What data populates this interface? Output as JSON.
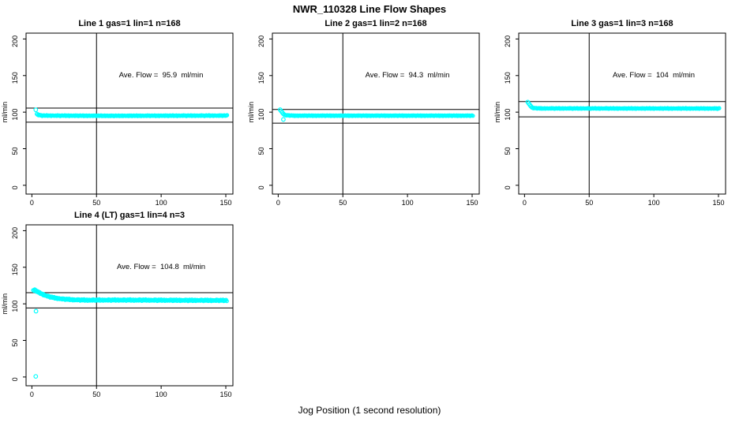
{
  "main": {
    "title": "NWR_110328  Line Flow Shapes",
    "xlabel": "Jog Position (1 second resolution)"
  },
  "colors": {
    "marker": "#00FFFF",
    "axis": "#000000",
    "background": "#FFFFFF"
  },
  "jitter_pattern": [
    0.25,
    -0.4,
    0.55,
    -0.15,
    0.35,
    -0.6,
    0.1,
    0.5,
    -0.3,
    0,
    0.6,
    -0.5,
    0.2,
    -0.25,
    0.45,
    -0.55,
    0.15,
    0.3,
    -0.35,
    -0.05
  ],
  "chart_data": [
    {
      "type": "scatter",
      "title": "Line 1 gas=1 lin=1 n=168",
      "annotation": "Ave. Flow =  95.9  ml/min",
      "ave_flow_ml_min": 95.9,
      "n": 168,
      "ylabel": "ml/min",
      "xticks": [
        0,
        50,
        100,
        150
      ],
      "yticks": [
        0,
        50,
        100,
        150,
        200
      ],
      "xlim": [
        -4.5,
        155.5
      ],
      "ylim": [
        -12,
        208
      ],
      "ref_line_x": 50,
      "ref_lines_y": [
        105.5,
        86.3
      ],
      "head_points": [
        [
          3,
          103.2
        ],
        [
          4,
          97.5
        ]
      ],
      "band": {
        "anchors": [
          [
            4.5,
            96.2
          ],
          [
            8,
            95.3
          ],
          [
            60,
            95.0
          ],
          [
            151,
            95.3
          ]
        ],
        "step": 0.7,
        "jitter_amp": 0.9
      }
    },
    {
      "type": "scatter",
      "title": "Line 2 gas=1 lin=2 n=168",
      "annotation": "Ave. Flow =  94.3  ml/min",
      "ave_flow_ml_min": 94.3,
      "n": 168,
      "ylabel": "ml/min",
      "xticks": [
        0,
        50,
        100,
        150
      ],
      "yticks": [
        0,
        50,
        100,
        150,
        200
      ],
      "xlim": [
        -4.5,
        155.5
      ],
      "ylim": [
        -12,
        208
      ],
      "ref_line_x": 50,
      "ref_lines_y": [
        103.7,
        84.9
      ],
      "head_points": [
        [
          1.5,
          103.3
        ],
        [
          2.3,
          101.5
        ],
        [
          3.1,
          99.6
        ],
        [
          3.9,
          97.8
        ],
        [
          4.7,
          96.6
        ],
        [
          4,
          90
        ]
      ],
      "band": {
        "anchors": [
          [
            5.5,
            95.8
          ],
          [
            12,
            95.2
          ],
          [
            151,
            95.2
          ]
        ],
        "step": 0.7,
        "jitter_amp": 0.8
      }
    },
    {
      "type": "scatter",
      "title": "Line 3 gas=1 lin=3 n=168",
      "annotation": "Ave. Flow =  104  ml/min",
      "ave_flow_ml_min": 104,
      "n": 168,
      "ylabel": "ml/min",
      "xticks": [
        0,
        50,
        100,
        150
      ],
      "yticks": [
        0,
        50,
        100,
        150,
        200
      ],
      "xlim": [
        -4.5,
        155.5
      ],
      "ylim": [
        -12,
        208
      ],
      "ref_line_x": 50,
      "ref_lines_y": [
        114.4,
        93.6
      ],
      "head_points": [
        [
          2.5,
          113.8
        ],
        [
          3.3,
          111.8
        ],
        [
          4.1,
          109.8
        ],
        [
          4.9,
          108.0
        ],
        [
          5.7,
          106.6
        ]
      ],
      "band": {
        "anchors": [
          [
            6.3,
            105.6
          ],
          [
            12,
            105.1
          ],
          [
            151,
            105.0
          ]
        ],
        "step": 0.7,
        "jitter_amp": 0.8
      }
    },
    {
      "type": "scatter",
      "title": "Line 4 (LT) gas=1 lin=4 n=3",
      "annotation": "Ave. Flow =  104.8  ml/min",
      "ave_flow_ml_min": 104.8,
      "n": 3,
      "ylabel": "ml/min",
      "xticks": [
        0,
        50,
        100,
        150
      ],
      "yticks": [
        0,
        50,
        100,
        150,
        200
      ],
      "xlim": [
        -4.5,
        155.5
      ],
      "ylim": [
        -12,
        208
      ],
      "ref_line_x": 50,
      "ref_lines_y": [
        115.3,
        94.3
      ],
      "head_points": [
        [
          3,
          0.8
        ],
        [
          3.2,
          90
        ]
      ],
      "band": {
        "anchors": [
          [
            1,
            118.3
          ],
          [
            2.5,
            118.8
          ],
          [
            4,
            117.0
          ],
          [
            6,
            115.0
          ],
          [
            9,
            112.5
          ],
          [
            13,
            110.0
          ],
          [
            18,
            108.0
          ],
          [
            24,
            106.6
          ],
          [
            32,
            105.6
          ],
          [
            42,
            105.1
          ],
          [
            70,
            105.2
          ],
          [
            110,
            104.9
          ],
          [
            151,
            104.7
          ]
        ],
        "step": 0.6,
        "jitter_amp": 1.7
      }
    }
  ]
}
